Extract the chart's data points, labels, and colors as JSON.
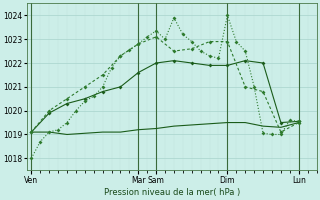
{
  "background_color": "#cceee8",
  "grid_color": "#a8d4cc",
  "grid_color_minor": "#c0e4dc",
  "line_color1": "#1a5c1a",
  "line_color2": "#1a5c1a",
  "line_color3": "#2d7a2d",
  "line_color4": "#2d7a2d",
  "xlabel": "Pression niveau de la mer( hPa )",
  "ylim": [
    1017.5,
    1024.5
  ],
  "yticks": [
    1018,
    1019,
    1020,
    1021,
    1022,
    1023,
    1024
  ],
  "x_day_labels": [
    "Ven",
    "Mar",
    "Sam",
    "Dim",
    "Lun"
  ],
  "x_day_positions": [
    0,
    12,
    14,
    22,
    30
  ],
  "xlim": [
    -0.5,
    32
  ],
  "series1_x": [
    0,
    2,
    4,
    6,
    8,
    10,
    12,
    14,
    16,
    18,
    20,
    22,
    24,
    26,
    28,
    30
  ],
  "series1_y": [
    1019.1,
    1019.1,
    1019.0,
    1019.05,
    1019.1,
    1019.1,
    1019.2,
    1019.25,
    1019.35,
    1019.4,
    1019.45,
    1019.5,
    1019.5,
    1019.35,
    1019.3,
    1019.5
  ],
  "series2_x": [
    0,
    2,
    4,
    6,
    8,
    10,
    12,
    14,
    16,
    18,
    20,
    22,
    24,
    26,
    28,
    30
  ],
  "series2_y": [
    1019.1,
    1019.9,
    1020.3,
    1020.5,
    1020.8,
    1021.0,
    1021.6,
    1022.0,
    1022.1,
    1022.0,
    1021.9,
    1021.9,
    1022.1,
    1022.0,
    1019.5,
    1019.55
  ],
  "series3_x": [
    0,
    2,
    4,
    6,
    8,
    10,
    12,
    14,
    16,
    18,
    20,
    22,
    24,
    26,
    28,
    30
  ],
  "series3_y": [
    1019.1,
    1020.0,
    1020.5,
    1021.0,
    1021.5,
    1022.3,
    1022.8,
    1023.1,
    1022.5,
    1022.6,
    1022.9,
    1022.9,
    1021.0,
    1020.8,
    1019.1,
    1019.5
  ],
  "series4_x": [
    0,
    1,
    2,
    3,
    4,
    5,
    6,
    7,
    8,
    9,
    10,
    11,
    12,
    13,
    14,
    15,
    16,
    17,
    18,
    19,
    20,
    21,
    22,
    23,
    24,
    25,
    26,
    27,
    28,
    29,
    30
  ],
  "series4_y": [
    1018.0,
    1018.7,
    1019.1,
    1019.2,
    1019.5,
    1020.0,
    1020.4,
    1020.6,
    1021.0,
    1021.8,
    1022.3,
    1022.55,
    1022.8,
    1023.1,
    1023.35,
    1023.0,
    1023.9,
    1023.2,
    1022.9,
    1022.5,
    1022.3,
    1022.2,
    1024.0,
    1022.9,
    1022.5,
    1021.0,
    1019.05,
    1019.0,
    1019.0,
    1019.6,
    1019.55
  ]
}
